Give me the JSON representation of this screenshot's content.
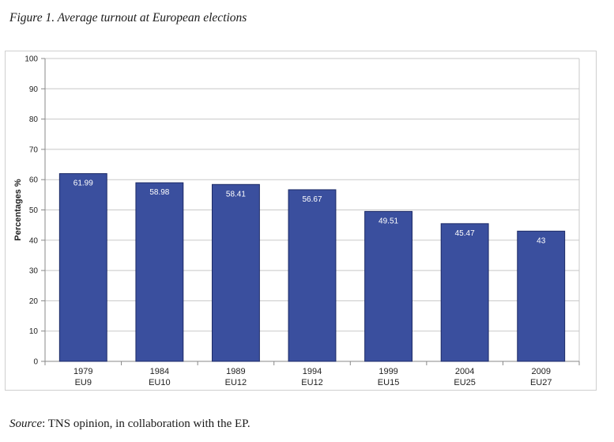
{
  "figure": {
    "title": "Figure 1. Average turnout at European elections",
    "source_label": "Source",
    "source_text": ": TNS opinion, in collaboration with the EP."
  },
  "chart_data": {
    "type": "bar",
    "categories": [
      "1979\nEU9",
      "1984\nEU10",
      "1989\nEU12",
      "1994\nEU12",
      "1999\nEU15",
      "2004\nEU25",
      "2009\nEU27"
    ],
    "category_lines": [
      [
        "1979",
        "EU9"
      ],
      [
        "1984",
        "EU10"
      ],
      [
        "1989",
        "EU12"
      ],
      [
        "1994",
        "EU12"
      ],
      [
        "1999",
        "EU15"
      ],
      [
        "2004",
        "EU25"
      ],
      [
        "2009",
        "EU27"
      ]
    ],
    "values": [
      61.99,
      58.98,
      58.41,
      56.67,
      49.51,
      45.47,
      43
    ],
    "value_labels": [
      "61.99",
      "58.98",
      "58.41",
      "56.67",
      "49.51",
      "45.47",
      "43"
    ],
    "title": "",
    "xlabel": "",
    "ylabel": "Percentages %",
    "ylim": [
      0,
      100
    ],
    "yticks": [
      0,
      10,
      20,
      30,
      40,
      50,
      60,
      70,
      80,
      90,
      100
    ],
    "grid": true,
    "bar_color": "#3a4f9e",
    "bar_edge_color": "#1c2a66",
    "label_color": "#ffffff"
  }
}
